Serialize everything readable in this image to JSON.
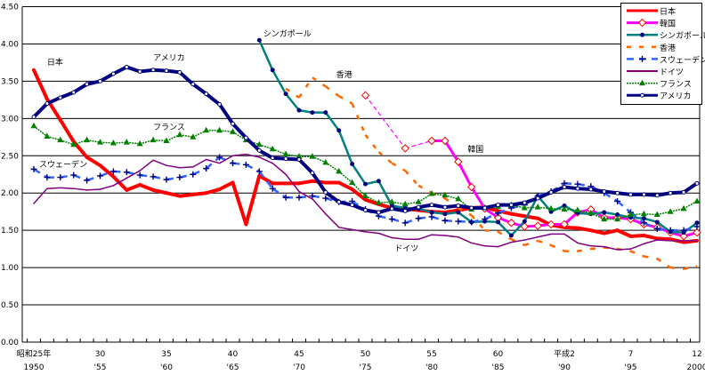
{
  "chart_data": {
    "type": "line",
    "title": "",
    "xlabel": "",
    "ylabel": "",
    "ylim": [
      0,
      4.5
    ],
    "xlim": [
      1950,
      2000
    ],
    "grid": true,
    "legend_position": "top-right",
    "y_ticks": [
      "0.00",
      "0.50",
      "1.00",
      "1.50",
      "2.00",
      "2.50",
      "3.00",
      "3.50",
      "4.00",
      "4.50"
    ],
    "x_tick_labels": [
      {
        "year": 1950,
        "era": "昭和25年",
        "western": "1950"
      },
      {
        "year": 1955,
        "era": "30",
        "western": "'55"
      },
      {
        "year": 1960,
        "era": "35",
        "western": "'60"
      },
      {
        "year": 1965,
        "era": "40",
        "western": "'65"
      },
      {
        "year": 1970,
        "era": "45",
        "western": "'70"
      },
      {
        "year": 1975,
        "era": "50",
        "western": "'75"
      },
      {
        "year": 1980,
        "era": "55",
        "western": "'80"
      },
      {
        "year": 1985,
        "era": "60",
        "western": "'85"
      },
      {
        "year": 1990,
        "era": "平成2",
        "western": "'90"
      },
      {
        "year": 1995,
        "era": "7",
        "western": "'95"
      },
      {
        "year": 2000,
        "era": "12",
        "western": "2000"
      }
    ],
    "series": [
      {
        "name": "日本",
        "key": "japan",
        "color": "#ff0000",
        "width": 4,
        "dash": "",
        "marker": "none",
        "label_in_plot": true,
        "start": 1950,
        "values": [
          3.65,
          3.26,
          2.98,
          2.69,
          2.48,
          2.37,
          2.22,
          2.04,
          2.11,
          2.04,
          2.0,
          1.96,
          1.98,
          2.0,
          2.05,
          2.14,
          1.58,
          2.23,
          2.13,
          2.13,
          2.13,
          2.16,
          2.14,
          2.14,
          2.05,
          1.91,
          1.85,
          1.8,
          1.79,
          1.77,
          1.75,
          1.74,
          1.77,
          1.8,
          1.81,
          1.76,
          1.72,
          1.69,
          1.66,
          1.57,
          1.54,
          1.53,
          1.5,
          1.46,
          1.5,
          1.42,
          1.43,
          1.39,
          1.38,
          1.34,
          1.36
        ]
      },
      {
        "name": "韓国",
        "key": "korea",
        "color": "#ff00ff",
        "width": 3,
        "dash": "",
        "marker": "diamond",
        "marker_color": "#ff0000",
        "dash_until": 1980,
        "start": 1975,
        "values": [
          3.31,
          null,
          null,
          2.6,
          null,
          2.7,
          2.7,
          2.42,
          2.08,
          1.79,
          1.67,
          1.6,
          1.55,
          1.56,
          1.58,
          1.58,
          1.74,
          1.78,
          1.67,
          1.67,
          1.65,
          1.58,
          1.54,
          1.47,
          1.42,
          1.47
        ]
      },
      {
        "name": "シンガポール",
        "key": "singapore",
        "color": "#008080",
        "width": 2.5,
        "dash": "",
        "marker": "dot",
        "marker_color": "#000080",
        "start": 1967,
        "values": [
          4.05,
          3.65,
          3.33,
          3.11,
          3.08,
          3.08,
          2.84,
          2.39,
          2.12,
          2.16,
          1.83,
          1.8,
          1.79,
          1.74,
          1.72,
          1.74,
          1.61,
          1.62,
          1.61,
          1.43,
          1.62,
          1.96,
          1.75,
          1.83,
          1.73,
          1.72,
          1.74,
          1.71,
          1.67,
          1.66,
          1.61,
          1.48,
          1.47,
          1.6
        ]
      },
      {
        "name": "香港",
        "key": "hongkong",
        "color": "#ff6600",
        "width": 2.5,
        "dash": "5,9",
        "marker": "none",
        "start": 1969,
        "values": [
          3.4,
          3.28,
          3.55,
          3.43,
          3.3,
          3.2,
          2.78,
          2.55,
          2.4,
          2.3,
          2.1,
          2.0,
          1.93,
          1.8,
          1.7,
          1.5,
          1.48,
          1.38,
          1.3,
          1.36,
          1.3,
          1.22,
          1.22,
          1.25,
          1.27,
          1.25,
          1.22,
          1.15,
          1.12,
          1.0,
          0.98,
          1.02
        ]
      },
      {
        "name": "スウェーデン",
        "key": "sweden",
        "color": "#3366ff",
        "width": 2.5,
        "dash": "8,6",
        "marker": "plus",
        "marker_color": "#000080",
        "start": 1950,
        "values": [
          2.32,
          2.21,
          2.21,
          2.24,
          2.17,
          2.23,
          2.29,
          2.28,
          2.24,
          2.22,
          2.18,
          2.21,
          2.25,
          2.33,
          2.48,
          2.4,
          2.38,
          2.29,
          2.06,
          1.94,
          1.94,
          1.96,
          1.93,
          1.88,
          1.89,
          1.78,
          1.69,
          1.65,
          1.6,
          1.66,
          1.68,
          1.63,
          1.62,
          1.61,
          1.65,
          1.73,
          1.8,
          1.84,
          1.96,
          2.02,
          2.13,
          2.12,
          2.09,
          2.0,
          1.89,
          1.74,
          1.6,
          1.52,
          1.5,
          1.5,
          1.55
        ]
      },
      {
        "name": "ドイツ",
        "key": "germany",
        "color": "#800080",
        "width": 1.5,
        "dash": "",
        "marker": "none",
        "start": 1950,
        "values": [
          1.86,
          2.06,
          2.07,
          2.06,
          2.04,
          2.05,
          2.1,
          2.2,
          2.3,
          2.44,
          2.37,
          2.34,
          2.35,
          2.45,
          2.4,
          2.5,
          2.52,
          2.48,
          2.4,
          2.25,
          2.02,
          1.92,
          1.72,
          1.54,
          1.51,
          1.48,
          1.46,
          1.4,
          1.38,
          1.38,
          1.44,
          1.43,
          1.41,
          1.33,
          1.29,
          1.28,
          1.34,
          1.37,
          1.41,
          1.45,
          1.45,
          1.33,
          1.29,
          1.28,
          1.24,
          1.25,
          1.32,
          1.37,
          1.36,
          1.36,
          1.36
        ]
      },
      {
        "name": "フランス",
        "key": "france",
        "color": "#008000",
        "width": 1.5,
        "dash": "2,1",
        "marker": "triangle",
        "marker_color": "#008000",
        "start": 1950,
        "values": [
          2.9,
          2.76,
          2.71,
          2.65,
          2.71,
          2.68,
          2.67,
          2.68,
          2.66,
          2.71,
          2.7,
          2.78,
          2.75,
          2.84,
          2.84,
          2.82,
          2.71,
          2.65,
          2.59,
          2.52,
          2.49,
          2.49,
          2.41,
          2.29,
          2.14,
          1.96,
          1.87,
          1.88,
          1.85,
          1.88,
          1.99,
          1.97,
          1.92,
          1.78,
          1.8,
          1.82,
          1.84,
          1.8,
          1.81,
          1.79,
          1.78,
          1.77,
          1.73,
          1.65,
          1.65,
          1.71,
          1.72,
          1.71,
          1.75,
          1.79,
          1.89
        ]
      },
      {
        "name": "アメリカ",
        "key": "usa",
        "color": "#000080",
        "width": 4,
        "dash": "",
        "marker": "circle",
        "marker_color": "#ffffff",
        "start": 1950,
        "values": [
          3.02,
          3.2,
          3.28,
          3.35,
          3.46,
          3.5,
          3.6,
          3.69,
          3.63,
          3.65,
          3.64,
          3.62,
          3.46,
          3.33,
          3.19,
          2.93,
          2.74,
          2.57,
          2.47,
          2.46,
          2.45,
          2.27,
          2.01,
          1.88,
          1.84,
          1.77,
          1.74,
          1.79,
          1.76,
          1.81,
          1.84,
          1.81,
          1.83,
          1.8,
          1.8,
          1.84,
          1.84,
          1.87,
          1.93,
          2.01,
          2.08,
          2.06,
          2.05,
          2.02,
          2.0,
          1.98,
          1.98,
          1.97,
          2.0,
          2.01,
          2.13
        ]
      }
    ],
    "annotations": [
      {
        "text": "日本",
        "series": "japan",
        "year": 1951,
        "value": 3.72
      },
      {
        "text": "アメリカ",
        "series": "usa",
        "year": 1959,
        "value": 3.78
      },
      {
        "text": "フランス",
        "series": "france",
        "year": 1959,
        "value": 2.85
      },
      {
        "text": "スウェーデン",
        "series": "sweden",
        "year": 1950.4,
        "value": 2.35
      },
      {
        "text": "シンガポール",
        "series": "singapore",
        "year": 1967.3,
        "value": 4.1
      },
      {
        "text": "香港",
        "series": "hongkong",
        "year": 1972.8,
        "value": 3.55
      },
      {
        "text": "韓国",
        "series": "korea",
        "year": 1982.7,
        "value": 2.55
      },
      {
        "text": "ドイツ",
        "series": "germany",
        "year": 1977.2,
        "value": 1.22
      }
    ]
  }
}
